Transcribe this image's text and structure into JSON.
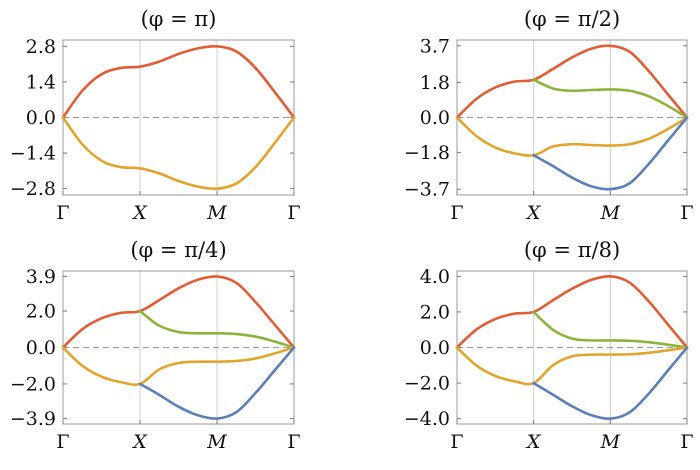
{
  "colors": {
    "orange": "#e45c33",
    "yellow": "#e3a42b",
    "green": "#8cb43c",
    "blue": "#5b7fb8"
  },
  "chart_data": [
    {
      "type": "line",
      "title": "(φ = π)",
      "x_ticks": [
        "Γ",
        "X",
        "M",
        "Γ"
      ],
      "y_ticks": [
        2.8,
        1.4,
        0.0,
        -1.4,
        -2.8
      ],
      "y_tick_labels": [
        "2.8",
        "1.4",
        "0.0",
        "−1.4",
        "−2.8"
      ],
      "ylim": [
        -3.05,
        3.05
      ],
      "zero_line": "dashed",
      "series": [
        {
          "color": "orange",
          "x": [
            0,
            0.25,
            0.5,
            0.75,
            1,
            1.25,
            1.5,
            1.75,
            2,
            2.25,
            2.5,
            2.75,
            3
          ],
          "y": [
            0,
            1.05,
            1.7,
            1.95,
            2.0,
            2.2,
            2.5,
            2.72,
            2.8,
            2.6,
            1.95,
            1.0,
            0
          ]
        },
        {
          "color": "yellow",
          "x": [
            0,
            0.25,
            0.5,
            0.75,
            1,
            1.25,
            1.5,
            1.75,
            2,
            2.25,
            2.5,
            2.75,
            3
          ],
          "y": [
            0,
            -1.05,
            -1.7,
            -1.95,
            -2.0,
            -2.2,
            -2.5,
            -2.72,
            -2.8,
            -2.6,
            -1.95,
            -1.0,
            0
          ]
        }
      ]
    },
    {
      "type": "line",
      "title": "(φ = π/2)",
      "x_ticks": [
        "Γ",
        "X",
        "M",
        "Γ"
      ],
      "y_ticks": [
        3.7,
        1.8,
        0.0,
        -1.8,
        -3.7
      ],
      "y_tick_labels": [
        "3.7",
        "1.8",
        "0.0",
        "−1.8",
        "−3.7"
      ],
      "ylim": [
        -4.0,
        4.0
      ],
      "zero_line": "dashed",
      "series": [
        {
          "color": "orange",
          "x": [
            0,
            0.25,
            0.5,
            0.75,
            1,
            1.25,
            1.5,
            1.75,
            2,
            2.25,
            2.5,
            2.75,
            3
          ],
          "y": [
            0,
            0.95,
            1.55,
            1.85,
            1.95,
            2.5,
            3.1,
            3.55,
            3.7,
            3.4,
            2.4,
            1.2,
            0
          ]
        },
        {
          "color": "green",
          "x": [
            1,
            1.25,
            1.5,
            1.75,
            2,
            2.25,
            2.5,
            2.75,
            3
          ],
          "y": [
            1.95,
            1.5,
            1.38,
            1.42,
            1.45,
            1.38,
            1.1,
            0.6,
            0
          ]
        },
        {
          "color": "yellow",
          "x": [
            0,
            0.25,
            0.5,
            0.75,
            1,
            1.25,
            1.5,
            1.75,
            2,
            2.25,
            2.5,
            2.75,
            3
          ],
          "y": [
            0,
            -0.95,
            -1.55,
            -1.85,
            -1.95,
            -1.5,
            -1.38,
            -1.42,
            -1.45,
            -1.38,
            -1.1,
            -0.6,
            0
          ]
        },
        {
          "color": "blue",
          "x": [
            1,
            1.25,
            1.5,
            1.75,
            2,
            2.25,
            2.5,
            2.75,
            3
          ],
          "y": [
            -1.95,
            -2.5,
            -3.1,
            -3.55,
            -3.7,
            -3.4,
            -2.4,
            -1.2,
            0
          ]
        }
      ]
    },
    {
      "type": "line",
      "title": "(φ = π/4)",
      "x_ticks": [
        "Γ",
        "X",
        "M",
        "Γ"
      ],
      "y_ticks": [
        3.9,
        2.0,
        0.0,
        -2.0,
        -3.9
      ],
      "y_tick_labels": [
        "3.9",
        "2.0",
        "0.0",
        "−2.0",
        "−3.9"
      ],
      "ylim": [
        -4.2,
        4.2
      ],
      "zero_line": "dashed",
      "series": [
        {
          "color": "orange",
          "x": [
            0,
            0.25,
            0.5,
            0.75,
            1,
            1.25,
            1.5,
            1.75,
            2,
            2.25,
            2.5,
            2.75,
            3
          ],
          "y": [
            0,
            1.0,
            1.6,
            1.9,
            2.0,
            2.6,
            3.25,
            3.72,
            3.9,
            3.55,
            2.5,
            1.25,
            0
          ]
        },
        {
          "color": "green",
          "x": [
            1,
            1.25,
            1.5,
            1.75,
            2,
            2.25,
            2.5,
            2.75,
            3
          ],
          "y": [
            2.0,
            1.2,
            0.85,
            0.78,
            0.78,
            0.74,
            0.6,
            0.32,
            0
          ]
        },
        {
          "color": "yellow",
          "x": [
            0,
            0.25,
            0.5,
            0.75,
            1,
            1.25,
            1.5,
            1.75,
            2,
            2.25,
            2.5,
            2.75,
            3
          ],
          "y": [
            0,
            -1.0,
            -1.6,
            -1.9,
            -2.0,
            -1.2,
            -0.85,
            -0.78,
            -0.78,
            -0.74,
            -0.6,
            -0.32,
            0
          ]
        },
        {
          "color": "blue",
          "x": [
            1,
            1.25,
            1.5,
            1.75,
            2,
            2.25,
            2.5,
            2.75,
            3
          ],
          "y": [
            -2.0,
            -2.6,
            -3.25,
            -3.72,
            -3.9,
            -3.55,
            -2.5,
            -1.25,
            0
          ]
        }
      ]
    },
    {
      "type": "line",
      "title": "(φ = π/8)",
      "x_ticks": [
        "Γ",
        "X",
        "M",
        "Γ"
      ],
      "y_ticks": [
        4.0,
        2.0,
        0.0,
        -2.0,
        -4.0
      ],
      "y_tick_labels": [
        "4.0",
        "2.0",
        "0.0",
        "−2.0",
        "−4.0"
      ],
      "ylim": [
        -4.3,
        4.3
      ],
      "zero_line": "dashed",
      "series": [
        {
          "color": "orange",
          "x": [
            0,
            0.25,
            0.5,
            0.75,
            1,
            1.25,
            1.5,
            1.75,
            2,
            2.25,
            2.5,
            2.75,
            3
          ],
          "y": [
            0,
            1.0,
            1.6,
            1.9,
            2.0,
            2.65,
            3.3,
            3.8,
            4.0,
            3.65,
            2.6,
            1.3,
            0
          ]
        },
        {
          "color": "green",
          "x": [
            1,
            1.25,
            1.5,
            1.75,
            2,
            2.25,
            2.5,
            2.75,
            3
          ],
          "y": [
            2.0,
            1.0,
            0.5,
            0.4,
            0.4,
            0.38,
            0.3,
            0.16,
            0
          ]
        },
        {
          "color": "yellow",
          "x": [
            0,
            0.25,
            0.5,
            0.75,
            1,
            1.25,
            1.5,
            1.75,
            2,
            2.25,
            2.5,
            2.75,
            3
          ],
          "y": [
            0,
            -1.0,
            -1.6,
            -1.9,
            -2.0,
            -1.0,
            -0.5,
            -0.4,
            -0.4,
            -0.38,
            -0.3,
            -0.16,
            0
          ]
        },
        {
          "color": "blue",
          "x": [
            1,
            1.25,
            1.5,
            1.75,
            2,
            2.25,
            2.5,
            2.75,
            3
          ],
          "y": [
            -2.0,
            -2.65,
            -3.3,
            -3.8,
            -4.0,
            -3.65,
            -2.6,
            -1.3,
            0
          ]
        }
      ]
    }
  ]
}
